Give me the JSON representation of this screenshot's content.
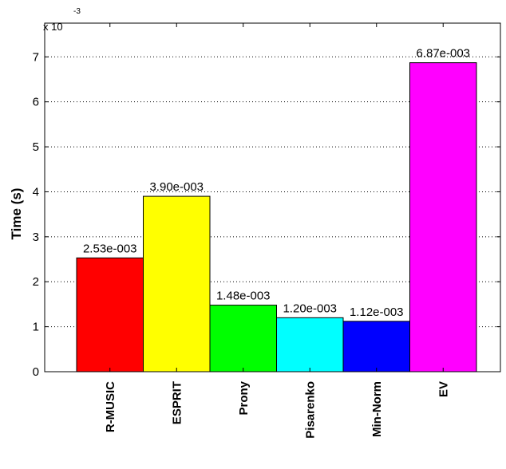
{
  "chart_data": {
    "type": "bar",
    "ylabel": "Time (s)",
    "y_multiplier_base": "x 10",
    "y_multiplier_exp": "-3",
    "ylim": [
      0,
      7.75
    ],
    "yticks": [
      0,
      1,
      2,
      3,
      4,
      5,
      6,
      7
    ],
    "ytick_labels": [
      "0",
      "1",
      "2",
      "3",
      "4",
      "5",
      "6",
      "7"
    ],
    "grid": "dotted",
    "categories": [
      "R-MUSIC",
      "ESPRIT",
      "Prony",
      "Pisarenko",
      "Min-Norm",
      "EV"
    ],
    "values": [
      2.53,
      3.9,
      1.48,
      1.2,
      1.12,
      6.87
    ],
    "value_units": "x 10^-3 s",
    "data_labels": [
      "2.53e-003",
      "3.90e-003",
      "1.48e-003",
      "1.20e-003",
      "1.12e-003",
      "6.87e-003"
    ],
    "colors": [
      "#ff0000",
      "#ffff00",
      "#00ff00",
      "#00ffff",
      "#0000ff",
      "#ff00ff"
    ]
  }
}
